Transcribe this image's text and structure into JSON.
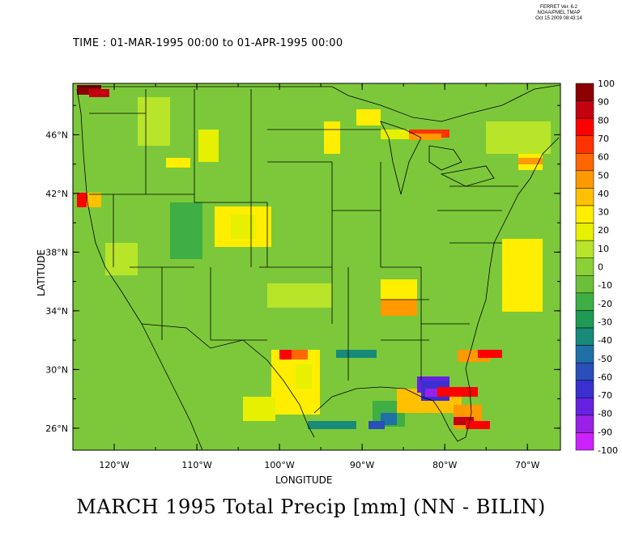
{
  "header": {
    "stamp_lines": [
      "FERRET Ver. 6.2",
      "NOAA/PMEL TMAP",
      "Oct 15 2009 08:43:14"
    ],
    "time_range": "TIME : 01-MAR-1995 00:00 to 01-APR-1995 00:00"
  },
  "map": {
    "title": "MARCH 1995 Total Precip [mm] (NN - BILIN)",
    "x_axis_label": "LONGITUDE",
    "y_axis_label": "LATITUDE",
    "lon_ticks": [
      "120°W",
      "110°W",
      "100°W",
      "90°W",
      "80°W",
      "70°W"
    ],
    "lat_ticks": [
      "46°N",
      "42°N",
      "38°N",
      "34°N",
      "30°N",
      "26°N"
    ],
    "lon_range": [
      -125,
      -66
    ],
    "lat_range": [
      24.5,
      49.5
    ],
    "base_color": "#7cc83a"
  },
  "colorbar": {
    "levels": [
      "100",
      "90",
      "80",
      "70",
      "60",
      "50",
      "40",
      "30",
      "20",
      "10",
      "0",
      "-10",
      "-20",
      "-30",
      "-40",
      "-50",
      "-60",
      "-70",
      "-80",
      "-90",
      "-100"
    ],
    "colors": [
      "#8b0000",
      "#c40010",
      "#ff0000",
      "#ff3300",
      "#ff6600",
      "#ff9900",
      "#ffc000",
      "#ffee00",
      "#e6f000",
      "#b8e42a",
      "#8cd038",
      "#6cbf3a",
      "#3fae44",
      "#1f9a55",
      "#178a78",
      "#2070a8",
      "#2a4fb8",
      "#3b2fd0",
      "#6622e0",
      "#9a22e8",
      "#cc22ff"
    ]
  }
}
